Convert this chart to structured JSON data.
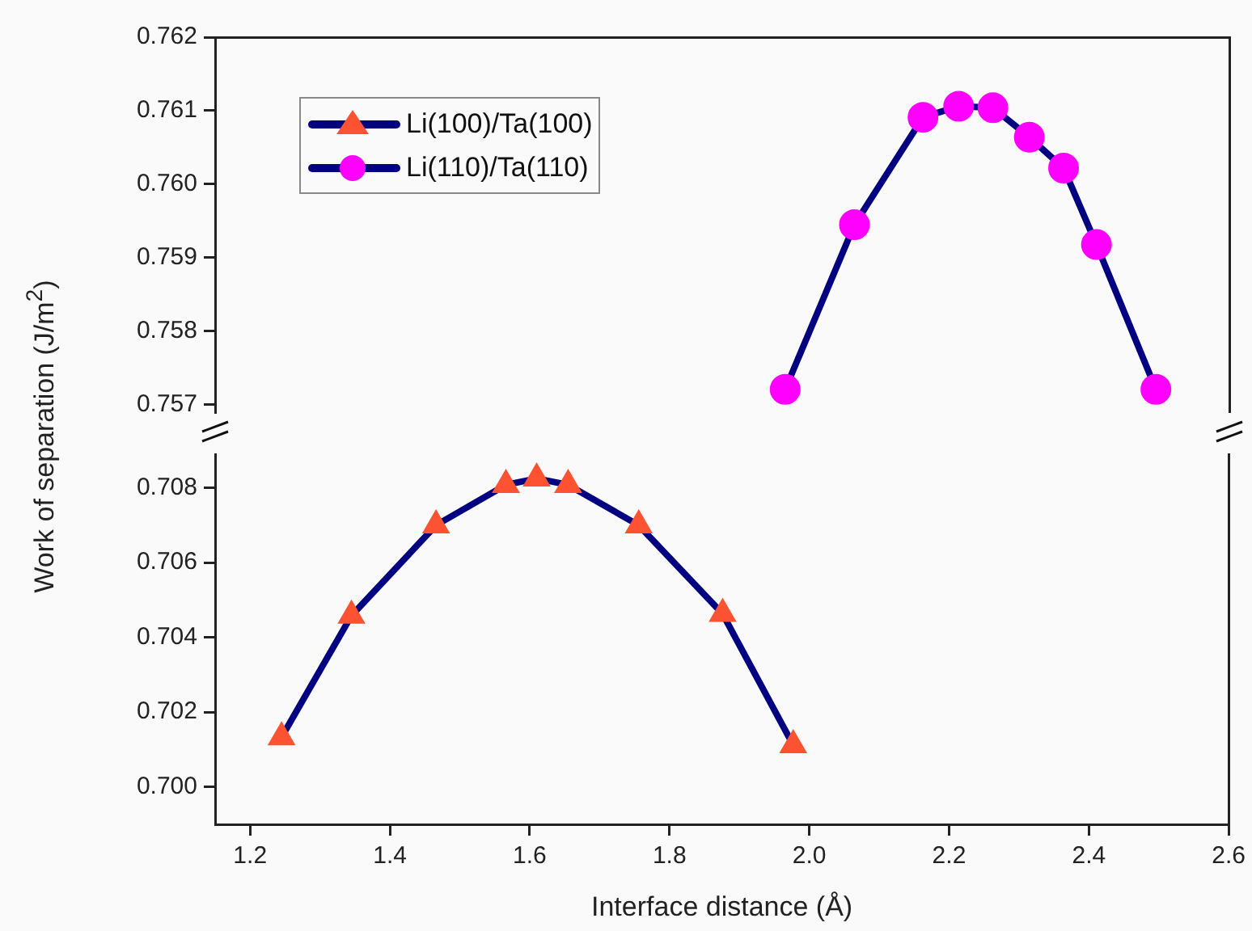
{
  "chart_data": [
    {
      "type": "line",
      "ylabel": "Work of separation (J/m$^{2}$)",
      "xlim": [
        1.15,
        2.6
      ],
      "ylim": [
        0.7569,
        0.762
      ],
      "yticks": [
        0.757,
        0.758,
        0.759,
        {
          "value": 0.76,
          "label": "0.760"
        },
        0.761,
        0.762
      ],
      "tick_labels": "y",
      "grid": false,
      "legend": "top left",
      "marker": "circle",
      "line_style": "solid",
      "series": [
        {
          "name": "Li(110)/Ta(110)",
          "color": "#ff00ff",
          "x": [
            1.965,
            2.064,
            2.162,
            2.213,
            2.262,
            2.314,
            2.363,
            2.41,
            2.495
          ],
          "values": [
            0.75721,
            0.75945,
            0.76091,
            0.76106,
            0.76104,
            0.76064,
            0.76022,
            0.75918,
            0.75721
          ]
        }
      ]
    },
    {
      "type": "line",
      "xlabel": "Interface distance (Å)",
      "xlim": [
        1.15,
        2.6
      ],
      "xticks": [
        1.2,
        1.4,
        1.6,
        1.8,
        {
          "value": 2.0,
          "label": "2.0"
        },
        2.2,
        2.4,
        2.6
      ],
      "ylim": [
        0.699,
        0.7089
      ],
      "yticks": [
        {
          "value": 0.7,
          "label": "0.700"
        },
        0.702,
        0.704,
        0.706,
        0.708
      ],
      "grid": false,
      "legend": "top left",
      "marker": "triangle",
      "line_style": "solid",
      "series": [
        {
          "name": "Li(100)/Ta(100)",
          "color": "#fd5332",
          "x": [
            1.245,
            1.345,
            1.466,
            1.566,
            1.61,
            1.655,
            1.756,
            1.876,
            1.977
          ],
          "values": [
            0.70133,
            0.70458,
            0.707,
            0.70808,
            0.70825,
            0.70808,
            0.707,
            0.70463,
            0.70112
          ]
        }
      ]
    }
  ]
}
